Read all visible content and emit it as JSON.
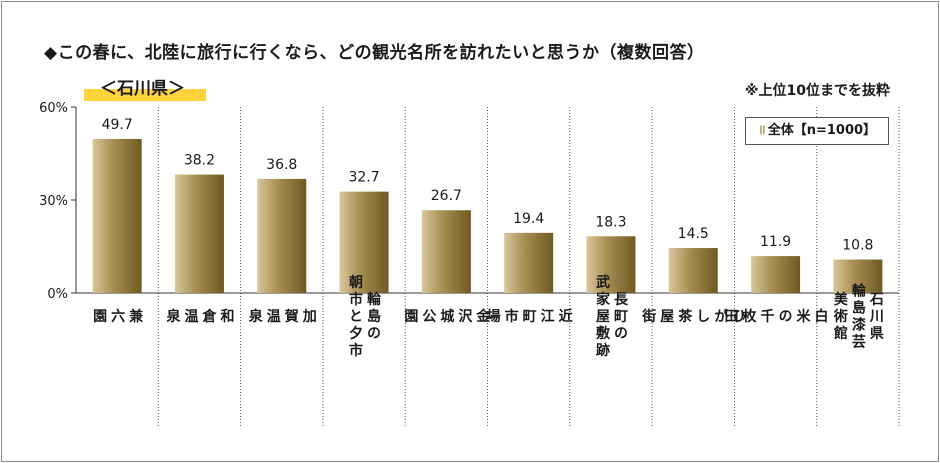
{
  "title": "◆この春に、北陸に旅行に行くなら、どの観光名所を訪れたいと思うか（複数回答）",
  "region_label": "＜石川県＞",
  "note": "※上位10位までを抜粋",
  "legend_label": "全体【n=1000】",
  "colors": {
    "bar_light": "#d8c79a",
    "bar_mid": "#a48b4e",
    "bar_dark": "#6f5a22"
  },
  "chart_data": {
    "type": "bar",
    "ylim": [
      0,
      60
    ],
    "yticks": [
      0,
      30,
      60
    ],
    "ytick_labels": [
      "0%",
      "30%",
      "60%"
    ],
    "categories": [
      [
        "兼",
        "六",
        "園"
      ],
      [
        "和",
        "倉",
        "温",
        "泉"
      ],
      [
        "加",
        "賀",
        "温",
        "泉"
      ],
      [
        "輪島の",
        "朝市と夕市"
      ],
      [
        "金",
        "沢",
        "城",
        "公",
        "園"
      ],
      [
        "近",
        "江",
        "町",
        "市",
        "場"
      ],
      [
        "長町の",
        "武家屋敷跡"
      ],
      [
        "ひ",
        "が",
        "し",
        "茶",
        "屋",
        "街"
      ],
      [
        "白",
        "米",
        "の",
        "千",
        "枚",
        "田"
      ],
      [
        "石川県",
        "輪島漆芸",
        "美術館"
      ]
    ],
    "series": [
      {
        "name": "全体【n=1000】",
        "values": [
          49.7,
          38.2,
          36.8,
          32.7,
          26.7,
          19.4,
          18.3,
          14.5,
          11.9,
          10.8
        ]
      }
    ]
  }
}
